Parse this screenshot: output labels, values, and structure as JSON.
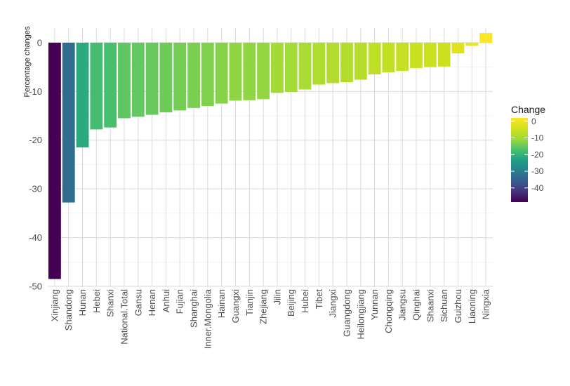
{
  "chart_data": {
    "type": "bar",
    "ylabel": "Percentage changes",
    "xlabel": "",
    "ylim": [
      -50,
      3
    ],
    "yticks": [
      0,
      -10,
      -20,
      -30,
      -40,
      -50
    ],
    "grid": true,
    "legend": {
      "title": "Change",
      "position": "right",
      "ticks": [
        0,
        -10,
        -20,
        -30,
        -40
      ],
      "colormap": "viridis",
      "range": [
        -48.5,
        2.0
      ]
    },
    "categories": [
      "Xinjiang",
      "Shandong",
      "Hunan",
      "Hebei",
      "Shanxi",
      "National.Total",
      "Gansu",
      "Henan",
      "Anhui",
      "Fujian",
      "Shanghai",
      "Inner.Mongolia",
      "Hainan",
      "Guangxi",
      "Tianjin",
      "Zhejiang",
      "Jilin",
      "Beijing",
      "Hubei",
      "Tibet",
      "Jiangxi",
      "Guangdong",
      "Heilongjiang",
      "Yunnan",
      "Chongqing",
      "Jiangsu",
      "Qinghai",
      "Shaanxi",
      "Sichuan",
      "Guizhou",
      "Liaoning",
      "Ningxia"
    ],
    "values": [
      -48.5,
      -32.8,
      -21.5,
      -17.8,
      -17.4,
      -15.5,
      -15.2,
      -14.8,
      -14.3,
      -13.9,
      -13.4,
      -13.0,
      -12.5,
      -11.9,
      -11.8,
      -11.6,
      -10.3,
      -10.1,
      -9.6,
      -8.6,
      -8.3,
      -8.1,
      -7.6,
      -6.5,
      -6.1,
      -5.8,
      -5.2,
      -5.0,
      -4.9,
      -2.2,
      -0.6,
      2.0
    ]
  }
}
